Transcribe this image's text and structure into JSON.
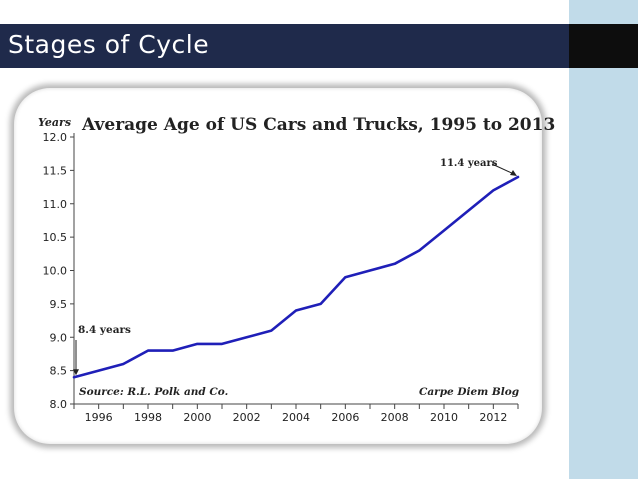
{
  "slide": {
    "title": "Stages of Cycle",
    "colors": {
      "title_bar": "#1f2a4b",
      "side_panel": "#c1dbe9",
      "line": "#1f1fb8"
    }
  },
  "chart_data": {
    "type": "line",
    "title": "Average Age of US Cars and Trucks, 1995 to 2013",
    "ylabel": "Years",
    "xlabel": "",
    "x": [
      1995,
      1996,
      1997,
      1998,
      1999,
      2000,
      2001,
      2002,
      2003,
      2004,
      2005,
      2006,
      2007,
      2008,
      2009,
      2010,
      2011,
      2012,
      2013
    ],
    "series": [
      {
        "name": "Average Age",
        "values": [
          8.4,
          8.5,
          8.6,
          8.8,
          8.8,
          8.9,
          8.9,
          9.0,
          9.1,
          9.4,
          9.5,
          9.9,
          10.0,
          10.1,
          10.3,
          10.6,
          10.9,
          11.2,
          11.4
        ]
      }
    ],
    "ylim": [
      8.0,
      12.0
    ],
    "xlim": [
      1995,
      2013
    ],
    "yticks": [
      {
        "v": 8.0,
        "label": "8.0"
      },
      {
        "v": 8.5,
        "label": "8.5"
      },
      {
        "v": 9.0,
        "label": "9.0"
      },
      {
        "v": 9.5,
        "label": "9.5"
      },
      {
        "v": 10.0,
        "label": "10.0"
      },
      {
        "v": 10.5,
        "label": "10.5"
      },
      {
        "v": 11.0,
        "label": "11.0"
      },
      {
        "v": 11.5,
        "label": "11.5"
      },
      {
        "v": 12.0,
        "label": "12.0"
      }
    ],
    "xticks": [
      {
        "v": 1996,
        "label": "1996"
      },
      {
        "v": 1998,
        "label": "1998"
      },
      {
        "v": 2000,
        "label": "2000"
      },
      {
        "v": 2002,
        "label": "2002"
      },
      {
        "v": 2004,
        "label": "2004"
      },
      {
        "v": 2006,
        "label": "2006"
      },
      {
        "v": 2008,
        "label": "2008"
      },
      {
        "v": 2010,
        "label": "2010"
      },
      {
        "v": 2012,
        "label": "2012"
      }
    ],
    "annotations": {
      "start": {
        "text": "8.4 years",
        "x": 1995,
        "y": 8.4
      },
      "end": {
        "text": "11.4 years",
        "x": 2013,
        "y": 11.4
      }
    },
    "source": "Source: R.L. Polk and Co.",
    "credit": "Carpe Diem Blog",
    "grid": false
  }
}
